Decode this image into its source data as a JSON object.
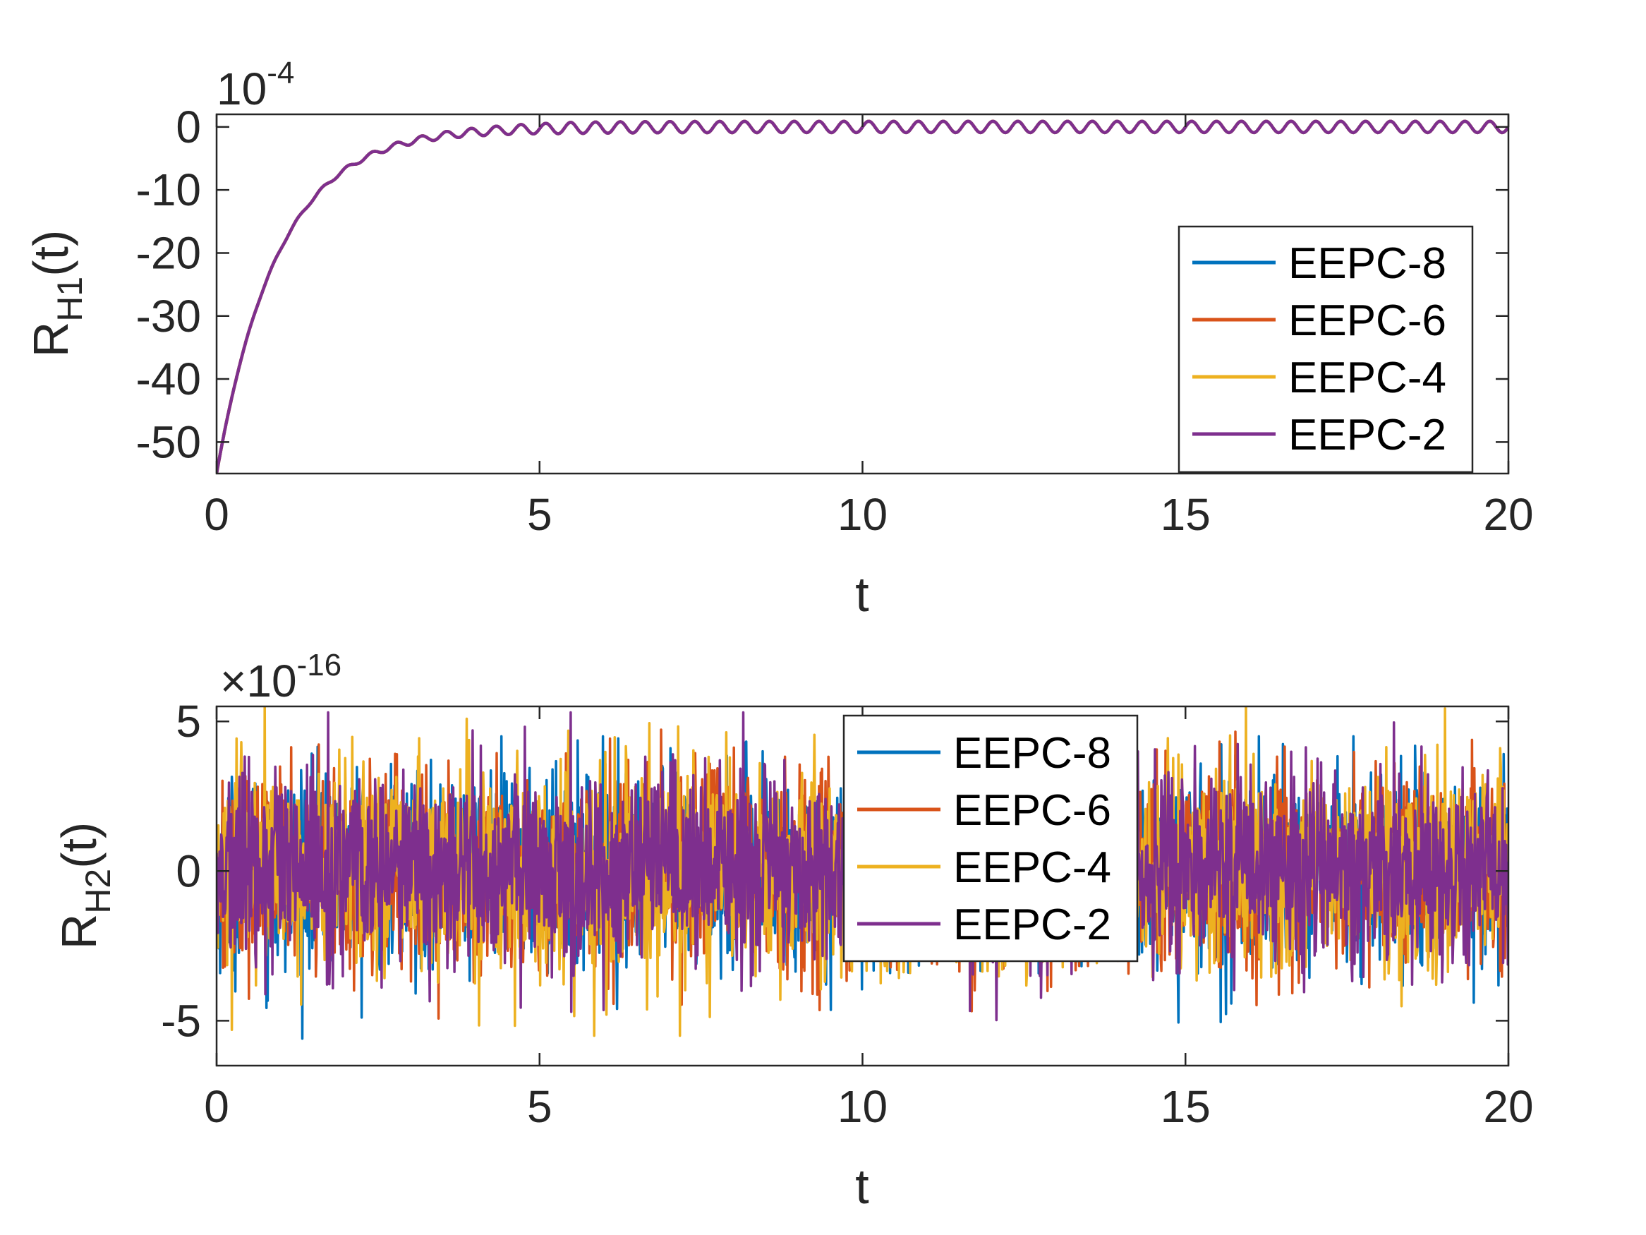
{
  "chart_data": [
    {
      "type": "line",
      "ylabel": "R",
      "ylabel_sub": "H1",
      "ylabel_suffix": "(t)",
      "xlabel": "t",
      "exponent_base": "10",
      "exponent_power": "-4",
      "xlim": [
        0,
        20
      ],
      "ylim": [
        -55,
        2
      ],
      "xticks": [
        0,
        5,
        10,
        15,
        20
      ],
      "xtick_labels": [
        "0",
        "5",
        "10",
        "15",
        "20"
      ],
      "yticks": [
        -50,
        -40,
        -30,
        -20,
        -10,
        0
      ],
      "ytick_labels": [
        "-50",
        "-40",
        "-30",
        "-20",
        "-10",
        "0"
      ],
      "legend_position": "bottom-right",
      "series": [
        {
          "name": "EEPC-8",
          "color": "#0072BD",
          "model": "exp_recovery",
          "y0": -55,
          "tau": 0.95,
          "osc_amp": 0.9,
          "osc_freq": 2.6
        },
        {
          "name": "EEPC-6",
          "color": "#D95319",
          "model": "exp_recovery",
          "y0": -55,
          "tau": 0.95,
          "osc_amp": 0.9,
          "osc_freq": 2.6
        },
        {
          "name": "EEPC-4",
          "color": "#EDB120",
          "model": "exp_recovery",
          "y0": -55,
          "tau": 0.95,
          "osc_amp": 0.9,
          "osc_freq": 2.6
        },
        {
          "name": "EEPC-2",
          "color": "#7E2F8E",
          "model": "exp_recovery",
          "y0": -55,
          "tau": 0.95,
          "osc_amp": 0.9,
          "osc_freq": 2.6
        }
      ]
    },
    {
      "type": "line",
      "ylabel": "R",
      "ylabel_sub": "H2",
      "ylabel_suffix": "(t)",
      "xlabel": "t",
      "exponent_prefix": "×",
      "exponent_base": "10",
      "exponent_power": "-16",
      "xlim": [
        0,
        20
      ],
      "ylim": [
        -6.5,
        5.5
      ],
      "xticks": [
        0,
        5,
        10,
        15,
        20
      ],
      "xtick_labels": [
        "0",
        "5",
        "10",
        "15",
        "20"
      ],
      "yticks": [
        -5,
        0,
        5
      ],
      "ytick_labels": [
        "-5",
        "0",
        "5"
      ],
      "legend_position": "top-center",
      "series": [
        {
          "name": "EEPC-8",
          "color": "#0072BD",
          "model": "roundoff_noise",
          "spread": 1.6,
          "peak_max": 4.5,
          "peak_min": -6.5
        },
        {
          "name": "EEPC-6",
          "color": "#D95319",
          "model": "roundoff_noise",
          "spread": 1.6,
          "peak_max": 5.3,
          "peak_min": -5.8
        },
        {
          "name": "EEPC-4",
          "color": "#EDB120",
          "model": "roundoff_noise",
          "spread": 1.7,
          "peak_max": 5.6,
          "peak_min": -5.5
        },
        {
          "name": "EEPC-2",
          "color": "#7E2F8E",
          "model": "roundoff_noise",
          "spread": 1.6,
          "peak_max": 5.3,
          "peak_min": -5.9
        }
      ]
    }
  ]
}
